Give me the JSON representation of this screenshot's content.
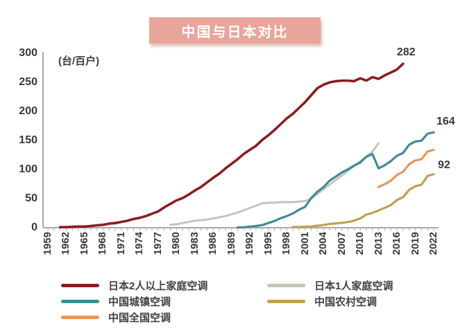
{
  "chart_data": {
    "type": "line",
    "title": "中国与日本对比",
    "unit_label": "(台/百户)",
    "xlim": [
      1959,
      2022
    ],
    "ylim": [
      0,
      300
    ],
    "y_ticks": [
      0,
      50,
      100,
      150,
      200,
      250,
      300
    ],
    "x_ticks": [
      1959,
      1962,
      1965,
      1968,
      1971,
      1974,
      1977,
      1980,
      1983,
      1986,
      1989,
      1992,
      1995,
      1998,
      2001,
      2004,
      2007,
      2010,
      2013,
      2016,
      2019,
      2022
    ],
    "grid": false,
    "legend_position": "bottom",
    "series": [
      {
        "name": "日本2人以上家庭空调",
        "color_key": "japan_2plus",
        "z": 5,
        "width": 3.6,
        "start_year": 1961,
        "end_label": "282",
        "label_dx": -9,
        "label_dy": -25,
        "values": [
          1,
          1,
          1.5,
          2,
          2,
          3,
          4,
          5,
          7,
          8,
          10,
          12,
          15,
          17,
          20,
          24,
          28,
          35,
          41,
          47,
          51,
          57,
          64,
          70,
          78,
          86,
          93,
          102,
          110,
          118,
          127,
          134,
          141,
          151,
          159,
          168,
          178,
          188,
          196,
          206,
          216,
          228,
          240,
          246,
          250,
          252,
          253,
          253,
          252,
          257,
          253,
          259,
          256,
          262,
          267,
          272,
          282
        ]
      },
      {
        "name": "日本1人家庭空调",
        "color_key": "japan_single",
        "z": 1,
        "width": 3,
        "start_year": 1979,
        "end_label": "",
        "values": [
          5,
          6,
          8,
          10,
          12,
          13,
          14,
          16,
          18,
          20,
          23,
          26,
          30,
          34,
          38,
          42,
          43,
          43,
          44,
          44,
          44,
          45,
          46,
          50,
          58,
          66,
          74,
          82,
          90,
          98,
          106,
          114,
          122,
          131,
          145
        ]
      },
      {
        "name": "中国城镇空调",
        "color_key": "china_urban",
        "z": 4,
        "width": 3.2,
        "start_year": 1990,
        "end_label": "164",
        "label_dx": 4,
        "label_dy": -24,
        "values": [
          0.3,
          0.8,
          1.9,
          3,
          4.5,
          8.1,
          11.6,
          16.3,
          20,
          24.5,
          30.8,
          35.8,
          51.1,
          61.8,
          69.8,
          80.7,
          87.8,
          95.1,
          100.3,
          106.8,
          112.1,
          122,
          126.8,
          102.2,
          107.4,
          114.6,
          123.7,
          128.6,
          142.9,
          148.3,
          149.6,
          161.7,
          164
        ]
      },
      {
        "name": "中国农村空调",
        "color_key": "china_rural",
        "z": 2,
        "width": 3.2,
        "start_year": 1999,
        "end_label": "92",
        "label_dx": 6,
        "label_dy": -22,
        "values": [
          1.2,
          1.3,
          1.7,
          2.3,
          3.5,
          4.7,
          6.4,
          7.3,
          8.5,
          9.8,
          12.2,
          16,
          22.6,
          25.4,
          29.8,
          34.2,
          38.8,
          47.6,
          52.6,
          65.2,
          71.3,
          73.8,
          89,
          92.2
        ]
      },
      {
        "name": "中国全国空调",
        "color_key": "china_national",
        "z": 3,
        "width": 3.2,
        "start_year": 2013,
        "end_label": "",
        "values": [
          70,
          74.9,
          80.7,
          90.9,
          96.1,
          109.3,
          115.6,
          117.7,
          131.2,
          133.9
        ]
      }
    ]
  },
  "legend": {
    "items": [
      {
        "label": "日本2人以上家庭空调",
        "color_key": "japan_2plus"
      },
      {
        "label": "日本1人家庭空调",
        "color_key": "japan_single"
      },
      {
        "label": "中国城镇空调",
        "color_key": "china_urban"
      },
      {
        "label": "中国农村空调",
        "color_key": "china_rural"
      },
      {
        "label": "中国全国空调",
        "color_key": "china_national"
      }
    ]
  },
  "colors": {
    "banner_bg": "#e8a59a",
    "banner_text": "#ffffff",
    "axis": "#a9a9a9",
    "tick_text": "#383838",
    "japan_2plus": "#8a1c21",
    "japan_single": "#c5c4bb",
    "china_urban": "#3f8a99",
    "china_national": "#e9965c",
    "china_rural": "#c3a04f"
  }
}
